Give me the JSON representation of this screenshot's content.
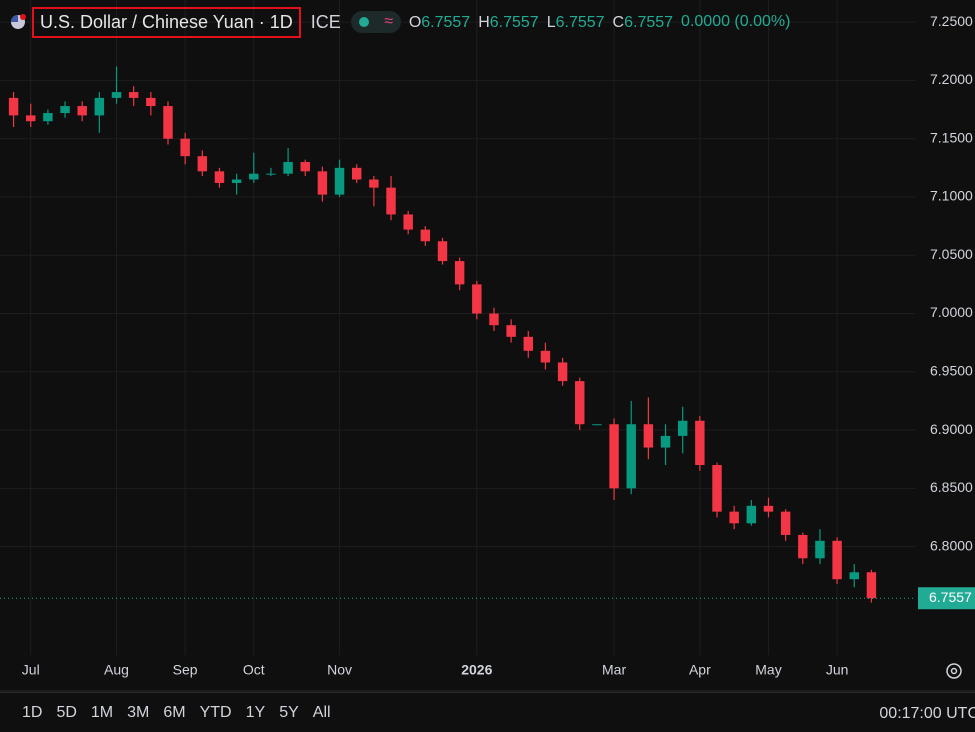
{
  "chart_data": {
    "type": "candlestick",
    "title": "U.S. Dollar / Chinese Yuan · 1D",
    "exchange": "ICE",
    "ohlc_legend": [
      {
        "label": "O",
        "value": 6.7557
      },
      {
        "label": "H",
        "value": 6.7557
      },
      {
        "label": "L",
        "value": 6.7557
      },
      {
        "label": "C",
        "value": 6.7557
      }
    ],
    "change": "0.0000 (0.00%)",
    "up_color": "#089981",
    "down_color": "#f23645",
    "categories": [
      null,
      "Jul",
      null,
      null,
      null,
      null,
      "Aug",
      null,
      null,
      null,
      "Sep",
      null,
      null,
      null,
      "Oct",
      null,
      null,
      null,
      null,
      "Nov",
      null,
      null,
      null,
      null,
      null,
      null,
      null,
      "2026",
      null,
      null,
      null,
      null,
      null,
      null,
      null,
      "Mar",
      null,
      null,
      null,
      null,
      "Apr",
      null,
      null,
      null,
      "May",
      null,
      null,
      null,
      "Jun",
      null,
      null
    ],
    "open": [
      7.185,
      7.17,
      7.165,
      7.172,
      7.178,
      7.17,
      7.185,
      7.19,
      7.185,
      7.178,
      7.15,
      7.135,
      7.122,
      7.112,
      7.115,
      7.12,
      7.12,
      7.13,
      7.122,
      7.102,
      7.125,
      7.115,
      7.108,
      7.085,
      7.072,
      7.062,
      7.045,
      7.025,
      7.0,
      6.99,
      6.98,
      6.968,
      6.958,
      6.942,
      6.905,
      6.905,
      6.85,
      6.905,
      6.885,
      6.895,
      6.908,
      6.87,
      6.83,
      6.82,
      6.835,
      6.83,
      6.81,
      6.79,
      6.805,
      6.772,
      6.778
    ],
    "high": [
      7.19,
      7.18,
      7.175,
      7.182,
      7.182,
      7.19,
      7.212,
      7.195,
      7.19,
      7.182,
      7.155,
      7.14,
      7.125,
      7.12,
      7.138,
      7.125,
      7.142,
      7.132,
      7.126,
      7.132,
      7.128,
      7.118,
      7.118,
      7.088,
      7.075,
      7.065,
      7.048,
      7.028,
      7.005,
      6.995,
      6.985,
      6.975,
      6.962,
      6.945,
      6.905,
      6.91,
      6.925,
      6.928,
      6.905,
      6.92,
      6.912,
      6.872,
      6.835,
      6.84,
      6.842,
      6.832,
      6.812,
      6.815,
      6.808,
      6.785,
      6.78
    ],
    "low": [
      7.16,
      7.16,
      7.162,
      7.168,
      7.165,
      7.155,
      7.18,
      7.178,
      7.17,
      7.145,
      7.128,
      7.118,
      7.108,
      7.102,
      7.112,
      7.118,
      7.118,
      7.118,
      7.096,
      7.1,
      7.112,
      7.092,
      7.08,
      7.068,
      7.058,
      7.042,
      7.02,
      6.995,
      6.985,
      6.975,
      6.962,
      6.952,
      6.938,
      6.9,
      6.905,
      6.84,
      6.845,
      6.875,
      6.87,
      6.88,
      6.865,
      6.825,
      6.815,
      6.818,
      6.825,
      6.805,
      6.785,
      6.785,
      6.768,
      6.765,
      6.752
    ],
    "close": [
      7.17,
      7.165,
      7.172,
      7.178,
      7.17,
      7.185,
      7.19,
      7.185,
      7.178,
      7.15,
      7.135,
      7.122,
      7.112,
      7.115,
      7.12,
      7.12,
      7.13,
      7.122,
      7.102,
      7.125,
      7.115,
      7.108,
      7.085,
      7.072,
      7.062,
      7.045,
      7.025,
      7.0,
      6.99,
      6.98,
      6.968,
      6.958,
      6.942,
      6.905,
      6.905,
      6.85,
      6.905,
      6.885,
      6.895,
      6.908,
      6.87,
      6.83,
      6.82,
      6.835,
      6.83,
      6.81,
      6.79,
      6.805,
      6.772,
      6.778,
      6.7557
    ],
    "ylim": [
      6.707,
      7.269
    ],
    "yticks": [
      {
        "value": 7.25,
        "label": "7.2500"
      },
      {
        "value": 7.2,
        "label": "7.2000"
      },
      {
        "value": 7.15,
        "label": "7.1500"
      },
      {
        "value": 7.1,
        "label": "7.1000"
      },
      {
        "value": 7.05,
        "label": "7.0500"
      },
      {
        "value": 7.0,
        "label": "7.0000"
      },
      {
        "value": 6.95,
        "label": "6.9500"
      },
      {
        "value": 6.9,
        "label": "6.9000"
      },
      {
        "value": 6.85,
        "label": "6.8500"
      },
      {
        "value": 6.8,
        "label": "6.8000"
      }
    ],
    "last_price": 6.7557,
    "last_price_color": "#22ab94",
    "grid": true
  },
  "toolbar": {
    "ranges": [
      "1D",
      "5D",
      "1M",
      "3M",
      "6M",
      "YTD",
      "1Y",
      "5Y",
      "All"
    ],
    "clock": "00:17:00 UTC"
  }
}
